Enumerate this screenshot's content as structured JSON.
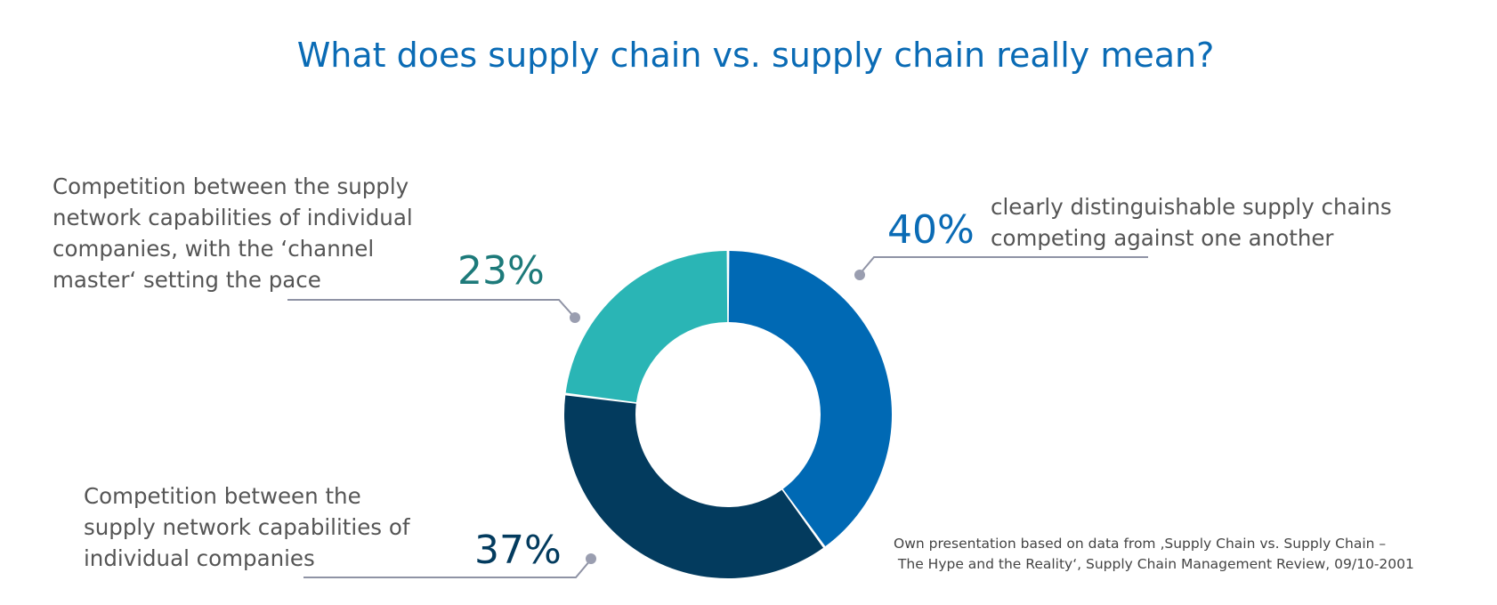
{
  "chart_data": {
    "type": "pie",
    "variant": "donut",
    "title": "What does supply chain vs. supply chain really mean?",
    "slices": [
      {
        "value": 40,
        "label": "40%",
        "description": [
          "clearly distinguishable supply chains",
          "competing against one another"
        ],
        "color": "#0069b4",
        "label_color": "#0a6bb5"
      },
      {
        "value": 37,
        "label": "37%",
        "description": [
          "Competition between the",
          "supply network capabilities of",
          "individual companies"
        ],
        "color": "#033b5e",
        "label_color": "#033b5e"
      },
      {
        "value": 23,
        "label": "23%",
        "description": [
          "Competition between the supply",
          "network capabilities of individual",
          "companies, with the ‘channel",
          "master‘ setting the pace"
        ],
        "color": "#2ab5b5",
        "label_color": "#1d7a7a"
      }
    ],
    "source": [
      "Own presentation based on data from ‚Supply Chain vs. Supply Chain –",
      " The Hype and the Reality‘, Supply Chain Management Review, 09/10-2001"
    ]
  }
}
